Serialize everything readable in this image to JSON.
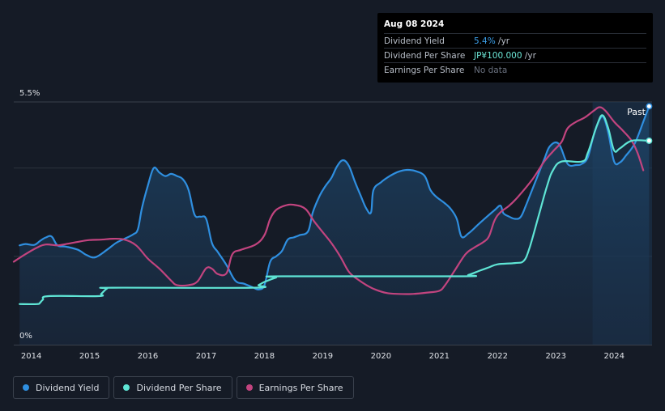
{
  "tooltip": {
    "date": "Aug 08 2024",
    "rows": [
      {
        "label": "Dividend Yield",
        "value": "5.4%",
        "unit": " /yr"
      },
      {
        "label": "Dividend Per Share",
        "value": "JP¥100.000",
        "unit": " /yr"
      },
      {
        "label": "Earnings Per Share",
        "value": "No data",
        "unit": ""
      }
    ]
  },
  "legend": [
    {
      "label": "Dividend Yield",
      "color": "#2f8fe0"
    },
    {
      "label": "Dividend Per Share",
      "color": "#5fe5d5"
    },
    {
      "label": "Earnings Per Share",
      "color": "#c2447f"
    }
  ],
  "past_label": "Past",
  "chart_data": {
    "type": "line",
    "y_axis": {
      "top_label": "5.5%",
      "bottom_label": "0%",
      "range": [
        0,
        5.5
      ],
      "grid": true
    },
    "x_axis": {
      "range": [
        2013.7,
        2024.65
      ],
      "ticks": [
        "2014",
        "2015",
        "2016",
        "2017",
        "2018",
        "2019",
        "2020",
        "2021",
        "2022",
        "2023",
        "2024"
      ]
    },
    "forecast_shade_start": 2023.63,
    "series": [
      {
        "name": "Dividend Yield",
        "color": "#2f8fe0",
        "unit": "%",
        "points": [
          [
            2013.8,
            2.25
          ],
          [
            2013.9,
            2.28
          ],
          [
            2014.05,
            2.26
          ],
          [
            2014.15,
            2.35
          ],
          [
            2014.25,
            2.43
          ],
          [
            2014.35,
            2.45
          ],
          [
            2014.45,
            2.25
          ],
          [
            2014.6,
            2.22
          ],
          [
            2014.8,
            2.15
          ],
          [
            2014.95,
            2.03
          ],
          [
            2015.1,
            1.98
          ],
          [
            2015.3,
            2.15
          ],
          [
            2015.45,
            2.3
          ],
          [
            2015.6,
            2.4
          ],
          [
            2015.75,
            2.5
          ],
          [
            2015.83,
            2.62
          ],
          [
            2015.9,
            3.1
          ],
          [
            2016.0,
            3.6
          ],
          [
            2016.1,
            4.0
          ],
          [
            2016.2,
            3.9
          ],
          [
            2016.3,
            3.82
          ],
          [
            2016.4,
            3.87
          ],
          [
            2016.5,
            3.82
          ],
          [
            2016.6,
            3.75
          ],
          [
            2016.7,
            3.5
          ],
          [
            2016.8,
            2.95
          ],
          [
            2016.9,
            2.9
          ],
          [
            2017.0,
            2.85
          ],
          [
            2017.1,
            2.3
          ],
          [
            2017.2,
            2.1
          ],
          [
            2017.35,
            1.8
          ],
          [
            2017.5,
            1.45
          ],
          [
            2017.65,
            1.38
          ],
          [
            2017.8,
            1.3
          ],
          [
            2017.9,
            1.25
          ],
          [
            2018.0,
            1.35
          ],
          [
            2018.1,
            1.88
          ],
          [
            2018.2,
            2.0
          ],
          [
            2018.3,
            2.12
          ],
          [
            2018.4,
            2.38
          ],
          [
            2018.5,
            2.43
          ],
          [
            2018.6,
            2.48
          ],
          [
            2018.75,
            2.57
          ],
          [
            2018.83,
            3.0
          ],
          [
            2018.95,
            3.38
          ],
          [
            2019.05,
            3.6
          ],
          [
            2019.15,
            3.78
          ],
          [
            2019.25,
            4.05
          ],
          [
            2019.35,
            4.18
          ],
          [
            2019.45,
            4.05
          ],
          [
            2019.55,
            3.7
          ],
          [
            2019.65,
            3.38
          ],
          [
            2019.75,
            3.08
          ],
          [
            2019.83,
            3.0
          ],
          [
            2019.87,
            3.5
          ],
          [
            2020.0,
            3.68
          ],
          [
            2020.15,
            3.82
          ],
          [
            2020.3,
            3.92
          ],
          [
            2020.45,
            3.96
          ],
          [
            2020.6,
            3.93
          ],
          [
            2020.75,
            3.82
          ],
          [
            2020.85,
            3.5
          ],
          [
            2020.95,
            3.35
          ],
          [
            2021.1,
            3.2
          ],
          [
            2021.2,
            3.07
          ],
          [
            2021.3,
            2.85
          ],
          [
            2021.38,
            2.45
          ],
          [
            2021.5,
            2.52
          ],
          [
            2021.65,
            2.7
          ],
          [
            2021.8,
            2.88
          ],
          [
            2021.95,
            3.05
          ],
          [
            2022.05,
            3.15
          ],
          [
            2022.1,
            2.98
          ],
          [
            2022.2,
            2.9
          ],
          [
            2022.3,
            2.85
          ],
          [
            2022.4,
            2.9
          ],
          [
            2022.5,
            3.2
          ],
          [
            2022.65,
            3.7
          ],
          [
            2022.8,
            4.2
          ],
          [
            2022.9,
            4.5
          ],
          [
            2023.05,
            4.55
          ],
          [
            2023.2,
            4.1
          ],
          [
            2023.35,
            4.07
          ],
          [
            2023.45,
            4.1
          ],
          [
            2023.55,
            4.25
          ],
          [
            2023.65,
            4.75
          ],
          [
            2023.75,
            5.1
          ],
          [
            2023.82,
            5.15
          ],
          [
            2023.9,
            4.8
          ],
          [
            2024.0,
            4.15
          ],
          [
            2024.1,
            4.13
          ],
          [
            2024.2,
            4.28
          ],
          [
            2024.35,
            4.55
          ],
          [
            2024.5,
            5.05
          ],
          [
            2024.6,
            5.4
          ]
        ]
      },
      {
        "name": "Dividend Per Share",
        "color": "#5fe5d5",
        "unit": "JP¥",
        "points": [
          [
            2013.8,
            0.92
          ],
          [
            2014.1,
            0.92
          ],
          [
            2014.15,
            0.95
          ],
          [
            2014.2,
            1.02
          ],
          [
            2014.3,
            1.1
          ],
          [
            2015.15,
            1.1
          ],
          [
            2015.2,
            1.15
          ],
          [
            2015.3,
            1.27
          ],
          [
            2015.4,
            1.29
          ],
          [
            2017.8,
            1.29
          ],
          [
            2017.9,
            1.35
          ],
          [
            2018.0,
            1.42
          ],
          [
            2018.2,
            1.52
          ],
          [
            2018.3,
            1.55
          ],
          [
            2021.35,
            1.55
          ],
          [
            2021.5,
            1.58
          ],
          [
            2021.7,
            1.68
          ],
          [
            2021.85,
            1.75
          ],
          [
            2022.0,
            1.82
          ],
          [
            2022.3,
            1.85
          ],
          [
            2022.45,
            1.9
          ],
          [
            2022.55,
            2.2
          ],
          [
            2022.7,
            2.9
          ],
          [
            2022.85,
            3.6
          ],
          [
            2022.95,
            3.95
          ],
          [
            2023.1,
            4.15
          ],
          [
            2023.45,
            4.15
          ],
          [
            2023.55,
            4.35
          ],
          [
            2023.7,
            4.95
          ],
          [
            2023.8,
            5.2
          ],
          [
            2023.9,
            4.9
          ],
          [
            2024.0,
            4.4
          ],
          [
            2024.1,
            4.45
          ],
          [
            2024.3,
            4.62
          ],
          [
            2024.6,
            4.62
          ]
        ]
      },
      {
        "name": "Earnings Per Share",
        "color": "#c2447f",
        "points": [
          [
            2013.7,
            1.88
          ],
          [
            2013.9,
            2.05
          ],
          [
            2014.1,
            2.2
          ],
          [
            2014.25,
            2.27
          ],
          [
            2014.45,
            2.25
          ],
          [
            2014.6,
            2.28
          ],
          [
            2014.8,
            2.33
          ],
          [
            2015.0,
            2.37
          ],
          [
            2015.2,
            2.38
          ],
          [
            2015.4,
            2.4
          ],
          [
            2015.6,
            2.38
          ],
          [
            2015.8,
            2.25
          ],
          [
            2016.0,
            1.95
          ],
          [
            2016.2,
            1.72
          ],
          [
            2016.4,
            1.45
          ],
          [
            2016.5,
            1.35
          ],
          [
            2016.7,
            1.35
          ],
          [
            2016.85,
            1.43
          ],
          [
            2017.0,
            1.73
          ],
          [
            2017.1,
            1.72
          ],
          [
            2017.2,
            1.6
          ],
          [
            2017.35,
            1.62
          ],
          [
            2017.45,
            2.05
          ],
          [
            2017.6,
            2.15
          ],
          [
            2017.85,
            2.27
          ],
          [
            2018.0,
            2.48
          ],
          [
            2018.1,
            2.85
          ],
          [
            2018.2,
            3.05
          ],
          [
            2018.35,
            3.15
          ],
          [
            2018.5,
            3.17
          ],
          [
            2018.7,
            3.08
          ],
          [
            2018.85,
            2.8
          ],
          [
            2019.0,
            2.55
          ],
          [
            2019.15,
            2.3
          ],
          [
            2019.3,
            2.0
          ],
          [
            2019.45,
            1.65
          ],
          [
            2019.6,
            1.48
          ],
          [
            2019.75,
            1.35
          ],
          [
            2019.9,
            1.25
          ],
          [
            2020.1,
            1.17
          ],
          [
            2020.3,
            1.15
          ],
          [
            2020.55,
            1.15
          ],
          [
            2020.8,
            1.18
          ],
          [
            2021.0,
            1.22
          ],
          [
            2021.1,
            1.35
          ],
          [
            2021.25,
            1.65
          ],
          [
            2021.45,
            2.05
          ],
          [
            2021.6,
            2.2
          ],
          [
            2021.75,
            2.32
          ],
          [
            2021.85,
            2.45
          ],
          [
            2021.95,
            2.82
          ],
          [
            2022.05,
            3.0
          ],
          [
            2022.2,
            3.15
          ],
          [
            2022.35,
            3.35
          ],
          [
            2022.6,
            3.75
          ],
          [
            2022.8,
            4.15
          ],
          [
            2022.95,
            4.38
          ],
          [
            2023.1,
            4.6
          ],
          [
            2023.2,
            4.9
          ],
          [
            2023.35,
            5.05
          ],
          [
            2023.5,
            5.15
          ],
          [
            2023.65,
            5.3
          ],
          [
            2023.75,
            5.38
          ],
          [
            2023.85,
            5.3
          ],
          [
            2024.0,
            5.05
          ],
          [
            2024.15,
            4.85
          ],
          [
            2024.3,
            4.62
          ],
          [
            2024.4,
            4.35
          ],
          [
            2024.5,
            3.95
          ]
        ]
      }
    ]
  }
}
